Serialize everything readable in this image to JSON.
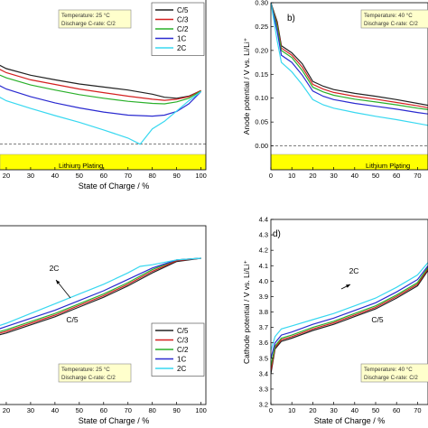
{
  "figure": {
    "plating_label": "Lithium Plating",
    "anno_25": [
      "Temperature: 25 °C",
      "Discharge C-rate: C/2"
    ],
    "anno_40": [
      "Temperature: 40 °C",
      "Discharge C-rate: C/2"
    ],
    "soc_label": "State of Charge / %",
    "colors": {
      "C/5": "#222222",
      "C/3": "#d42020",
      "C/2": "#2ab02a",
      "1C": "#2a2ad0",
      "2C": "#38d8f0",
      "plating_fill": "#ffff00",
      "anno_fill": "#ffffcc"
    }
  },
  "chart_data": [
    {
      "panel": "a",
      "type": "line",
      "xlabel": "State of Charge / %",
      "ylabel": "",
      "xlim": [
        10,
        102
      ],
      "ylim": [
        -0.05,
        0.3
      ],
      "x_ticks": [
        20,
        30,
        40,
        50,
        60,
        70,
        80,
        90,
        100
      ],
      "annotation": [
        "Temperature: 25 °C",
        "Discharge C-rate: C/2"
      ],
      "shaded_band": {
        "label": "Lithium Plating",
        "y_range": [
          -0.03,
          0.0
        ]
      },
      "legend": [
        "C/5",
        "C/3",
        "C/2",
        "1C",
        "2C"
      ],
      "legend_position": "top-right",
      "series": [
        {
          "name": "C/5",
          "x": [
            10,
            15,
            20,
            30,
            40,
            50,
            60,
            70,
            80,
            85,
            90,
            95,
            100
          ],
          "y": [
            0.18,
            0.16,
            0.148,
            0.135,
            0.126,
            0.118,
            0.112,
            0.106,
            0.098,
            0.092,
            0.09,
            0.094,
            0.105
          ]
        },
        {
          "name": "C/3",
          "x": [
            10,
            15,
            20,
            30,
            40,
            50,
            60,
            70,
            80,
            85,
            90,
            95,
            100
          ],
          "y": [
            0.17,
            0.152,
            0.14,
            0.126,
            0.117,
            0.108,
            0.101,
            0.094,
            0.088,
            0.086,
            0.088,
            0.093,
            0.105
          ]
        },
        {
          "name": "C/2",
          "x": [
            10,
            15,
            20,
            30,
            40,
            50,
            60,
            70,
            80,
            85,
            90,
            95,
            100
          ],
          "y": [
            0.16,
            0.14,
            0.13,
            0.116,
            0.106,
            0.097,
            0.09,
            0.084,
            0.08,
            0.079,
            0.083,
            0.09,
            0.104
          ]
        },
        {
          "name": "1C",
          "x": [
            10,
            15,
            20,
            30,
            40,
            50,
            60,
            70,
            80,
            85,
            90,
            95,
            100
          ],
          "y": [
            0.14,
            0.12,
            0.108,
            0.093,
            0.081,
            0.071,
            0.063,
            0.057,
            0.055,
            0.057,
            0.064,
            0.079,
            0.103
          ]
        },
        {
          "name": "2C",
          "x": [
            10,
            15,
            20,
            30,
            40,
            50,
            60,
            70,
            75,
            80,
            85,
            90,
            95,
            100
          ],
          "y": [
            0.12,
            0.098,
            0.085,
            0.07,
            0.056,
            0.043,
            0.028,
            0.012,
            0.0,
            0.03,
            0.045,
            0.065,
            0.085,
            0.103
          ]
        }
      ]
    },
    {
      "panel": "b",
      "type": "line",
      "title": "b)",
      "xlabel": "",
      "ylabel": "Anode potential / V vs. Li/Li⁺",
      "xlim": [
        0,
        75
      ],
      "ylim": [
        -0.05,
        0.3
      ],
      "x_ticks": [
        0,
        10,
        20,
        30,
        40,
        50,
        60,
        70
      ],
      "y_ticks": [
        0.0,
        0.05,
        0.1,
        0.15,
        0.2,
        0.25,
        0.3
      ],
      "annotation": [
        "Temperature: 40 °C",
        "Discharge C-rate: C/2"
      ],
      "shaded_band": {
        "label": "Lithium Plating",
        "y_range": [
          -0.03,
          0.0
        ]
      },
      "series": [
        {
          "name": "C/5",
          "x": [
            0,
            3,
            5,
            10,
            15,
            20,
            25,
            30,
            40,
            50,
            60,
            70,
            75
          ],
          "y": [
            0.3,
            0.26,
            0.21,
            0.195,
            0.172,
            0.135,
            0.125,
            0.118,
            0.11,
            0.104,
            0.097,
            0.089,
            0.085
          ]
        },
        {
          "name": "C/3",
          "x": [
            0,
            3,
            5,
            10,
            15,
            20,
            25,
            30,
            40,
            50,
            60,
            70,
            75
          ],
          "y": [
            0.3,
            0.255,
            0.205,
            0.19,
            0.165,
            0.129,
            0.119,
            0.112,
            0.104,
            0.098,
            0.091,
            0.084,
            0.08
          ]
        },
        {
          "name": "C/2",
          "x": [
            0,
            3,
            5,
            10,
            15,
            20,
            25,
            30,
            40,
            50,
            60,
            70,
            75
          ],
          "y": [
            0.3,
            0.25,
            0.2,
            0.185,
            0.158,
            0.123,
            0.113,
            0.106,
            0.098,
            0.092,
            0.086,
            0.079,
            0.076
          ]
        },
        {
          "name": "1C",
          "x": [
            0,
            3,
            5,
            10,
            15,
            20,
            25,
            30,
            40,
            50,
            60,
            70,
            75
          ],
          "y": [
            0.3,
            0.24,
            0.19,
            0.175,
            0.148,
            0.115,
            0.104,
            0.097,
            0.089,
            0.083,
            0.077,
            0.07,
            0.067
          ]
        },
        {
          "name": "2C",
          "x": [
            0,
            3,
            5,
            10,
            15,
            20,
            25,
            30,
            40,
            50,
            60,
            70,
            75
          ],
          "y": [
            0.3,
            0.22,
            0.175,
            0.155,
            0.128,
            0.097,
            0.086,
            0.079,
            0.07,
            0.062,
            0.055,
            0.047,
            0.043
          ]
        }
      ]
    },
    {
      "panel": "c",
      "type": "line",
      "xlabel": "State of Charge / %",
      "ylabel": "",
      "xlim": [
        10,
        102
      ],
      "ylim": [
        3.3,
        4.4
      ],
      "x_ticks": [
        20,
        30,
        40,
        50,
        60,
        70,
        80,
        90,
        100
      ],
      "annotation": [
        "Temperature: 25 °C",
        "Discharge C-rate: C/2"
      ],
      "arrow_labels": [
        "2C",
        "C/5"
      ],
      "legend": [
        "C/5",
        "C/3",
        "C/2",
        "1C",
        "2C"
      ],
      "legend_position": "bottom-right",
      "series": [
        {
          "name": "C/5",
          "x": [
            10,
            20,
            30,
            40,
            50,
            60,
            70,
            80,
            90,
            100
          ],
          "y": [
            3.7,
            3.74,
            3.79,
            3.84,
            3.9,
            3.96,
            4.03,
            4.11,
            4.18,
            4.2
          ]
        },
        {
          "name": "C/3",
          "x": [
            10,
            20,
            30,
            40,
            50,
            60,
            70,
            80,
            90,
            100
          ],
          "y": [
            3.71,
            3.75,
            3.8,
            3.85,
            3.91,
            3.97,
            4.04,
            4.12,
            4.185,
            4.2
          ]
        },
        {
          "name": "C/2",
          "x": [
            10,
            20,
            30,
            40,
            50,
            60,
            70,
            80,
            90,
            100
          ],
          "y": [
            3.72,
            3.76,
            3.81,
            3.86,
            3.92,
            3.98,
            4.05,
            4.13,
            4.19,
            4.2
          ]
        },
        {
          "name": "1C",
          "x": [
            10,
            20,
            30,
            40,
            50,
            60,
            70,
            80,
            90,
            100
          ],
          "y": [
            3.73,
            3.78,
            3.83,
            3.88,
            3.94,
            4.0,
            4.07,
            4.14,
            4.19,
            4.2
          ]
        },
        {
          "name": "2C",
          "x": [
            10,
            20,
            30,
            40,
            50,
            60,
            70,
            75,
            80,
            90,
            100
          ],
          "y": [
            3.75,
            3.8,
            3.86,
            3.92,
            3.98,
            4.04,
            4.11,
            4.15,
            4.16,
            4.19,
            4.2
          ]
        }
      ]
    },
    {
      "panel": "d",
      "type": "line",
      "title": "d)",
      "xlabel": "State of Charge / %",
      "ylabel": "Cathode potential / V vs. Li/Li⁺",
      "xlim": [
        0,
        75
      ],
      "ylim": [
        3.2,
        4.4
      ],
      "x_ticks": [
        0,
        10,
        20,
        30,
        40,
        50,
        60,
        70
      ],
      "y_ticks": [
        3.2,
        3.3,
        3.4,
        3.5,
        3.6,
        3.7,
        3.8,
        3.9,
        4.0,
        4.1,
        4.2,
        4.3,
        4.4
      ],
      "annotation": [
        "Temperature: 40 °C",
        "Discharge C-rate: C/2"
      ],
      "arrow_labels": [
        "2C",
        "C/5"
      ],
      "series": [
        {
          "name": "C/5",
          "x": [
            0,
            2,
            5,
            10,
            20,
            30,
            40,
            50,
            60,
            70,
            75
          ],
          "y": [
            3.4,
            3.56,
            3.61,
            3.63,
            3.68,
            3.72,
            3.77,
            3.82,
            3.89,
            3.97,
            4.07
          ]
        },
        {
          "name": "C/3",
          "x": [
            0,
            2,
            5,
            10,
            20,
            30,
            40,
            50,
            60,
            70,
            75
          ],
          "y": [
            3.42,
            3.57,
            3.62,
            3.64,
            3.69,
            3.73,
            3.78,
            3.83,
            3.9,
            3.98,
            4.08
          ]
        },
        {
          "name": "C/2",
          "x": [
            0,
            2,
            5,
            10,
            20,
            30,
            40,
            50,
            60,
            70,
            75
          ],
          "y": [
            3.45,
            3.58,
            3.63,
            3.65,
            3.7,
            3.74,
            3.79,
            3.84,
            3.91,
            3.99,
            4.09
          ]
        },
        {
          "name": "1C",
          "x": [
            0,
            2,
            5,
            10,
            20,
            30,
            40,
            50,
            60,
            70,
            75
          ],
          "y": [
            3.5,
            3.6,
            3.65,
            3.67,
            3.72,
            3.76,
            3.81,
            3.86,
            3.93,
            4.01,
            4.1
          ]
        },
        {
          "name": "2C",
          "x": [
            0,
            2,
            5,
            10,
            20,
            30,
            40,
            50,
            60,
            70,
            75
          ],
          "y": [
            3.55,
            3.64,
            3.69,
            3.71,
            3.75,
            3.79,
            3.84,
            3.89,
            3.96,
            4.04,
            4.12
          ]
        }
      ]
    }
  ]
}
